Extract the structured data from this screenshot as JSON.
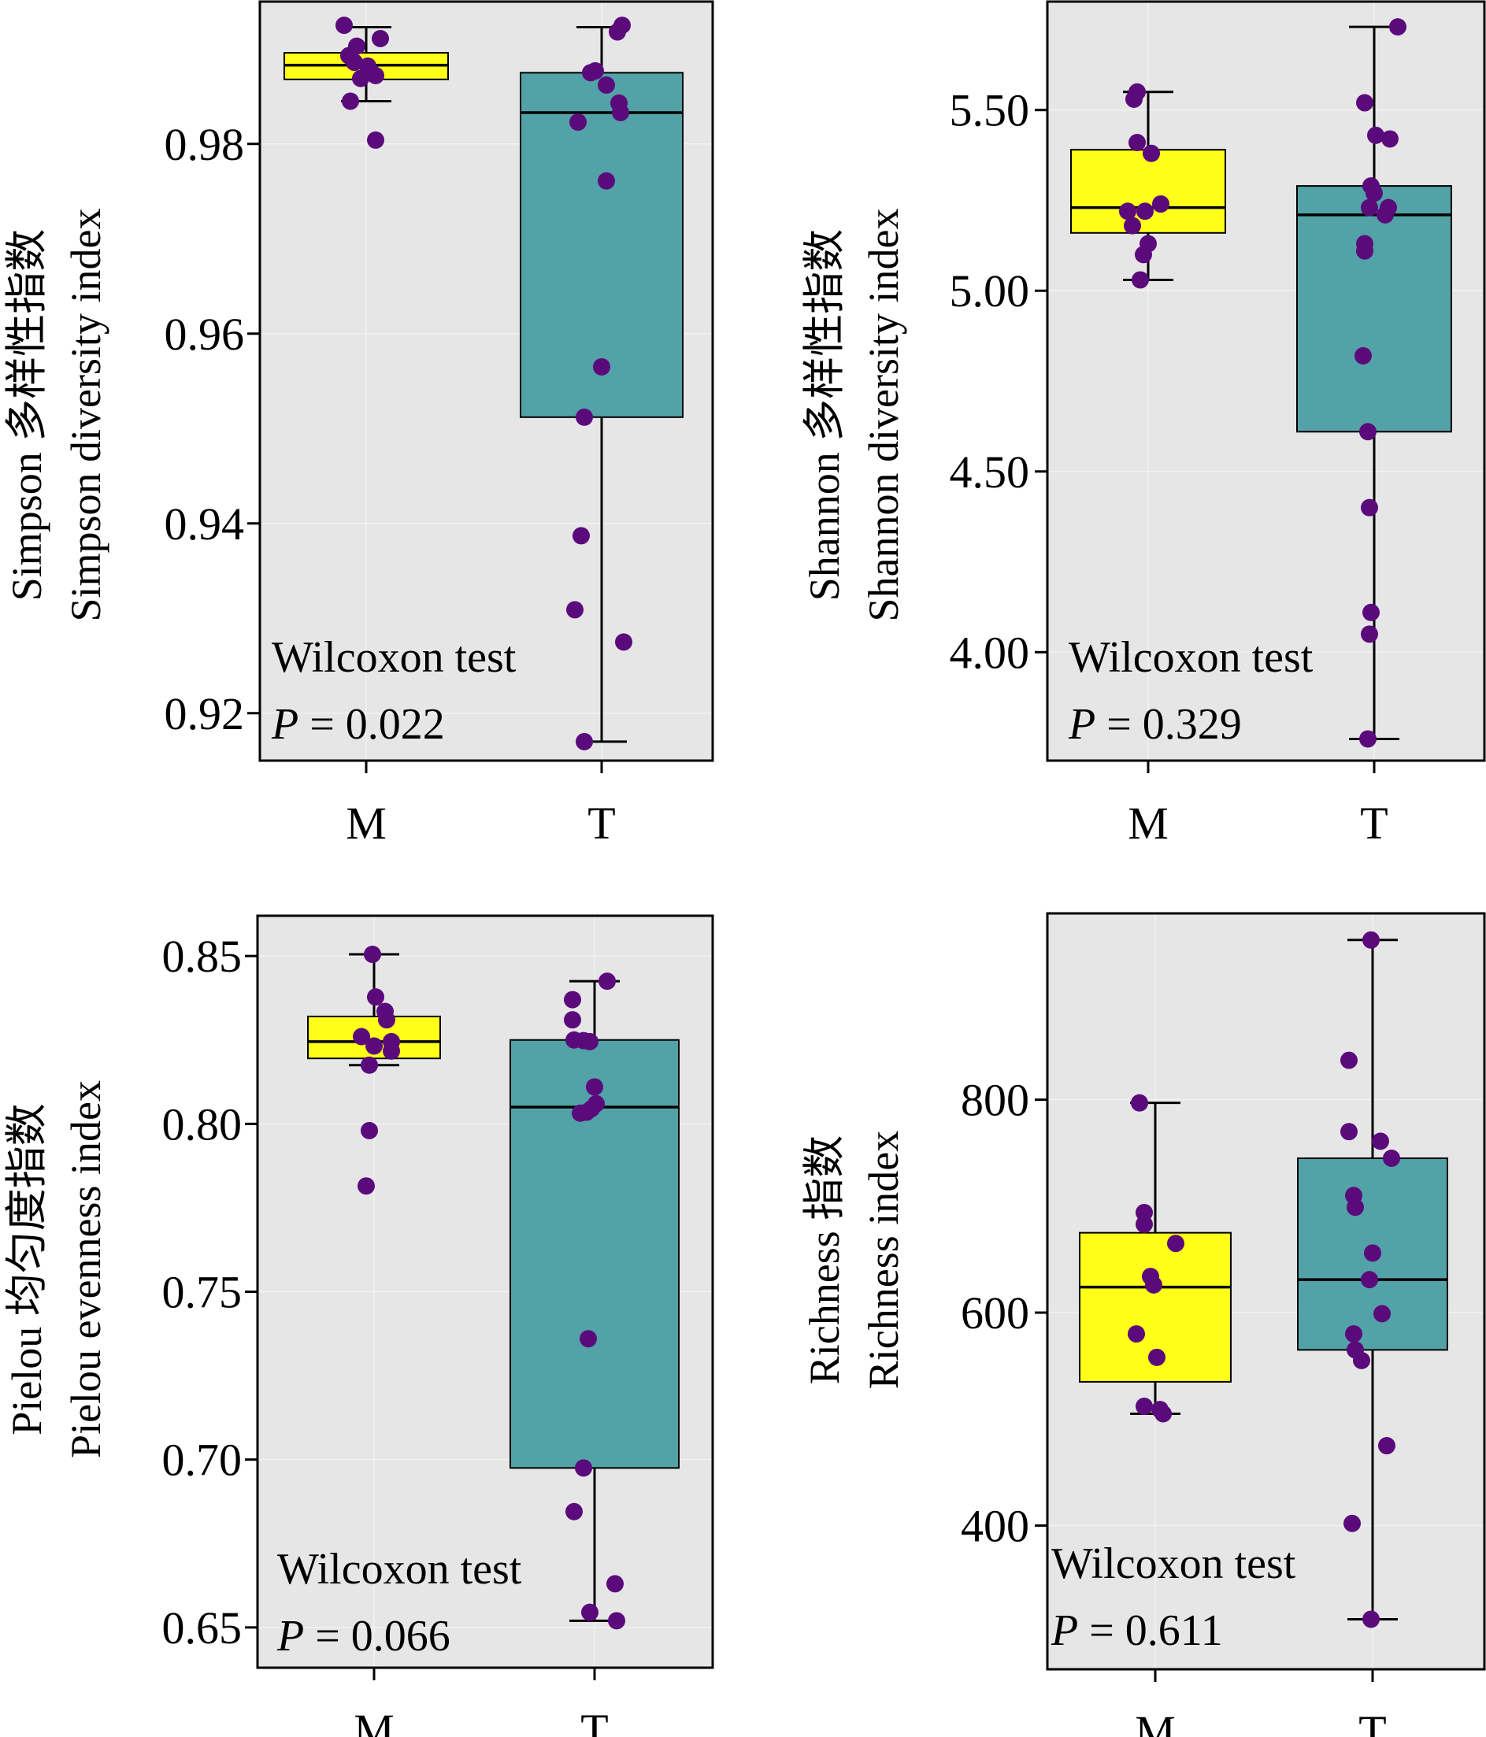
{
  "colors": {
    "panel_background": "#e6e6e6",
    "grid": "#f2f2f2",
    "point": "#5b0a7c",
    "group_colors": {
      "M": "#ffff19",
      "T": "#52a2a7"
    }
  },
  "chart_data": [
    {
      "id": "simpson",
      "type": "box",
      "ylabel_line1": "Simpson 多样性指数",
      "ylabel_line2": "Simpson diversity index",
      "categories": [
        "M",
        "T"
      ],
      "yticks": [
        0.92,
        0.94,
        0.96,
        0.98
      ],
      "tick_decimals": 2,
      "ylim": [
        0.915,
        0.995
      ],
      "grid": true,
      "test_label": "Wilcoxon test",
      "p_label": "P",
      "p_value": "= 0.022",
      "groups": [
        {
          "name": "M",
          "whisker_low": 0.9845,
          "q1": 0.9868,
          "median": 0.9883,
          "q3": 0.9896,
          "whisker_high": 0.9923,
          "points": [
            {
              "x": -0.28,
              "y": 0.9925
            },
            {
              "x": -0.12,
              "y": 0.9903
            },
            {
              "x": -0.22,
              "y": 0.9893
            },
            {
              "x": 0.18,
              "y": 0.9911
            },
            {
              "x": -0.15,
              "y": 0.9886
            },
            {
              "x": 0.02,
              "y": 0.9882
            },
            {
              "x": 0.06,
              "y": 0.9876
            },
            {
              "x": 0.12,
              "y": 0.9872
            },
            {
              "x": -0.07,
              "y": 0.9869
            },
            {
              "x": -0.2,
              "y": 0.9845
            },
            {
              "x": 0.12,
              "y": 0.9804
            }
          ]
        },
        {
          "name": "T",
          "whisker_low": 0.917,
          "q1": 0.9512,
          "median": 0.9833,
          "q3": 0.9875,
          "whisker_high": 0.9923,
          "points": [
            {
              "x": 0.26,
              "y": 0.9925
            },
            {
              "x": 0.2,
              "y": 0.9918
            },
            {
              "x": -0.08,
              "y": 0.9877
            },
            {
              "x": -0.14,
              "y": 0.9875
            },
            {
              "x": 0.06,
              "y": 0.9862
            },
            {
              "x": 0.22,
              "y": 0.9843
            },
            {
              "x": 0.24,
              "y": 0.9833
            },
            {
              "x": -0.3,
              "y": 0.9823
            },
            {
              "x": 0.06,
              "y": 0.9761
            },
            {
              "x": 0.0,
              "y": 0.9565
            },
            {
              "x": -0.22,
              "y": 0.9512
            },
            {
              "x": -0.26,
              "y": 0.9387
            },
            {
              "x": -0.34,
              "y": 0.9309
            },
            {
              "x": 0.28,
              "y": 0.9275
            },
            {
              "x": -0.22,
              "y": 0.917
            }
          ]
        }
      ]
    },
    {
      "id": "shannon",
      "type": "box",
      "ylabel_line1": "Shannon 多样性指数",
      "ylabel_line2": "Shannon diversity index",
      "categories": [
        "M",
        "T"
      ],
      "yticks": [
        4.0,
        4.5,
        5.0,
        5.5
      ],
      "tick_decimals": 2,
      "ylim": [
        3.7,
        5.8
      ],
      "grid": true,
      "test_label": "Wilcoxon test",
      "p_label": "P",
      "p_value": "= 0.329",
      "groups": [
        {
          "name": "M",
          "whisker_low": 5.03,
          "q1": 5.16,
          "median": 5.23,
          "q3": 5.39,
          "whisker_high": 5.55,
          "points": [
            {
              "x": -0.14,
              "y": 5.55
            },
            {
              "x": -0.18,
              "y": 5.53
            },
            {
              "x": -0.14,
              "y": 5.41
            },
            {
              "x": 0.04,
              "y": 5.38
            },
            {
              "x": 0.16,
              "y": 5.24
            },
            {
              "x": -0.04,
              "y": 5.22
            },
            {
              "x": -0.26,
              "y": 5.22
            },
            {
              "x": -0.2,
              "y": 5.18
            },
            {
              "x": 0.0,
              "y": 5.13
            },
            {
              "x": -0.06,
              "y": 5.1
            },
            {
              "x": -0.1,
              "y": 5.03
            }
          ]
        },
        {
          "name": "T",
          "whisker_low": 3.76,
          "q1": 4.61,
          "median": 5.21,
          "q3": 5.29,
          "whisker_high": 5.73,
          "points": [
            {
              "x": 0.3,
              "y": 5.73
            },
            {
              "x": -0.12,
              "y": 5.52
            },
            {
              "x": 0.02,
              "y": 5.43
            },
            {
              "x": 0.2,
              "y": 5.42
            },
            {
              "x": -0.04,
              "y": 5.29
            },
            {
              "x": 0.0,
              "y": 5.27
            },
            {
              "x": 0.18,
              "y": 5.23
            },
            {
              "x": -0.06,
              "y": 5.23
            },
            {
              "x": 0.14,
              "y": 5.21
            },
            {
              "x": -0.12,
              "y": 5.13
            },
            {
              "x": -0.12,
              "y": 5.11
            },
            {
              "x": -0.14,
              "y": 4.82
            },
            {
              "x": -0.08,
              "y": 4.61
            },
            {
              "x": -0.06,
              "y": 4.4
            },
            {
              "x": -0.04,
              "y": 4.11
            },
            {
              "x": -0.06,
              "y": 4.05
            },
            {
              "x": -0.08,
              "y": 3.76
            }
          ]
        }
      ]
    },
    {
      "id": "pielou",
      "type": "box",
      "ylabel_line1": "Pielou 均匀度指数",
      "ylabel_line2": "Pielou evenness index",
      "categories": [
        "M",
        "T"
      ],
      "yticks": [
        0.65,
        0.7,
        0.75,
        0.8,
        0.85
      ],
      "tick_decimals": 2,
      "ylim": [
        0.638,
        0.862
      ],
      "grid": true,
      "test_label": "Wilcoxon test",
      "p_label": "P",
      "p_value": "= 0.066",
      "groups": [
        {
          "name": "M",
          "whisker_low": 0.8175,
          "q1": 0.8195,
          "median": 0.8245,
          "q3": 0.832,
          "whisker_high": 0.8505,
          "points": [
            {
              "x": -0.02,
              "y": 0.8505
            },
            {
              "x": 0.02,
              "y": 0.8378
            },
            {
              "x": 0.14,
              "y": 0.8335
            },
            {
              "x": 0.16,
              "y": 0.831
            },
            {
              "x": -0.16,
              "y": 0.826
            },
            {
              "x": 0.22,
              "y": 0.8245
            },
            {
              "x": 0.0,
              "y": 0.8232
            },
            {
              "x": 0.22,
              "y": 0.8217
            },
            {
              "x": -0.06,
              "y": 0.8175
            },
            {
              "x": -0.06,
              "y": 0.798
            },
            {
              "x": -0.1,
              "y": 0.7815
            }
          ]
        },
        {
          "name": "T",
          "whisker_low": 0.652,
          "q1": 0.6975,
          "median": 0.805,
          "q3": 0.825,
          "whisker_high": 0.8425,
          "points": [
            {
              "x": 0.16,
              "y": 0.8425
            },
            {
              "x": -0.28,
              "y": 0.837
            },
            {
              "x": -0.28,
              "y": 0.831
            },
            {
              "x": -0.26,
              "y": 0.825
            },
            {
              "x": -0.14,
              "y": 0.8248
            },
            {
              "x": -0.06,
              "y": 0.8245
            },
            {
              "x": 0.0,
              "y": 0.811
            },
            {
              "x": 0.02,
              "y": 0.806
            },
            {
              "x": -0.04,
              "y": 0.8045
            },
            {
              "x": -0.1,
              "y": 0.8035
            },
            {
              "x": -0.18,
              "y": 0.8032
            },
            {
              "x": -0.08,
              "y": 0.736
            },
            {
              "x": -0.14,
              "y": 0.6975
            },
            {
              "x": -0.26,
              "y": 0.6845
            },
            {
              "x": 0.26,
              "y": 0.663
            },
            {
              "x": -0.06,
              "y": 0.6545
            },
            {
              "x": 0.28,
              "y": 0.652
            }
          ]
        }
      ]
    },
    {
      "id": "richness",
      "type": "box",
      "ylabel_line1": "Richness 指数",
      "ylabel_line2": "Richness index",
      "categories": [
        "M",
        "T"
      ],
      "yticks": [
        400,
        600,
        800
      ],
      "tick_decimals": 0,
      "ylim": [
        265,
        975
      ],
      "grid": true,
      "test_label": "Wilcoxon test",
      "p_label": "P",
      "p_value": "= 0.611",
      "groups": [
        {
          "name": "M",
          "whisker_low": 505,
          "q1": 535,
          "median": 624,
          "q3": 675,
          "whisker_high": 797,
          "points": [
            {
              "x": -0.2,
              "y": 797
            },
            {
              "x": -0.14,
              "y": 694
            },
            {
              "x": -0.14,
              "y": 683
            },
            {
              "x": 0.26,
              "y": 665
            },
            {
              "x": -0.06,
              "y": 634
            },
            {
              "x": -0.02,
              "y": 626
            },
            {
              "x": -0.24,
              "y": 580
            },
            {
              "x": 0.02,
              "y": 558
            },
            {
              "x": -0.14,
              "y": 512
            },
            {
              "x": 0.06,
              "y": 509
            },
            {
              "x": 0.1,
              "y": 505
            }
          ]
        },
        {
          "name": "T",
          "whisker_low": 312,
          "q1": 565,
          "median": 631,
          "q3": 745,
          "whisker_high": 950,
          "points": [
            {
              "x": -0.02,
              "y": 950
            },
            {
              "x": -0.3,
              "y": 837
            },
            {
              "x": 0.1,
              "y": 761
            },
            {
              "x": -0.3,
              "y": 770
            },
            {
              "x": 0.24,
              "y": 745
            },
            {
              "x": -0.24,
              "y": 710
            },
            {
              "x": -0.22,
              "y": 699
            },
            {
              "x": 0.0,
              "y": 656
            },
            {
              "x": -0.04,
              "y": 631
            },
            {
              "x": 0.12,
              "y": 599
            },
            {
              "x": -0.24,
              "y": 580
            },
            {
              "x": -0.22,
              "y": 565
            },
            {
              "x": -0.14,
              "y": 555
            },
            {
              "x": 0.18,
              "y": 475
            },
            {
              "x": -0.26,
              "y": 402
            },
            {
              "x": -0.02,
              "y": 312
            }
          ]
        }
      ]
    }
  ]
}
